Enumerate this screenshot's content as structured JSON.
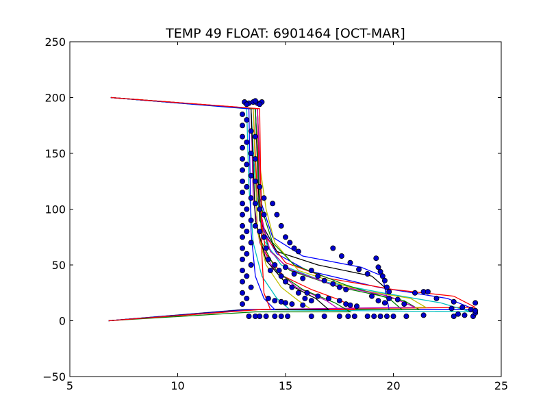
{
  "chart_data": {
    "type": "line",
    "title": "TEMP 49 FLOAT: 6901464 [OCT-MAR]",
    "xlabel": "",
    "ylabel": "",
    "xlim": [
      5,
      25
    ],
    "ylim": [
      -50,
      250
    ],
    "xticks": [
      5,
      10,
      15,
      20,
      25
    ],
    "yticks": [
      -50,
      0,
      50,
      100,
      150,
      200,
      250
    ],
    "xtick_labels": [
      "5",
      "10",
      "15",
      "20",
      "25"
    ],
    "ytick_labels": [
      "−50",
      "0",
      "50",
      "100",
      "150",
      "200",
      "250"
    ],
    "grid": false,
    "legend": "none",
    "marker_color": "#0000cc",
    "series": [
      {
        "color": "#0000ff",
        "points": [
          [
            6.8,
            0
          ],
          [
            13.3,
            10
          ],
          [
            23.8,
            10
          ],
          [
            22.5,
            20
          ],
          [
            19.3,
            30
          ],
          [
            16,
            45
          ],
          [
            14.6,
            60
          ],
          [
            14,
            80
          ],
          [
            13.7,
            110
          ],
          [
            13.5,
            150
          ],
          [
            13.4,
            190
          ],
          [
            6.9,
            200
          ]
        ]
      },
      {
        "color": "#008000",
        "points": [
          [
            6.8,
            0
          ],
          [
            13.5,
            10
          ],
          [
            21.2,
            10
          ],
          [
            20.5,
            18
          ],
          [
            17.5,
            30
          ],
          [
            15.2,
            45
          ],
          [
            14.2,
            65
          ],
          [
            13.8,
            100
          ],
          [
            13.6,
            190
          ],
          [
            6.9,
            200
          ]
        ]
      },
      {
        "color": "#ff0000",
        "points": [
          [
            6.8,
            0
          ],
          [
            13.2,
            10
          ],
          [
            23.8,
            12
          ],
          [
            22.8,
            22
          ],
          [
            20,
            28
          ],
          [
            17,
            38
          ],
          [
            15,
            52
          ],
          [
            14.1,
            75
          ],
          [
            13.7,
            110
          ],
          [
            13.5,
            190
          ],
          [
            6.9,
            200
          ]
        ]
      },
      {
        "color": "#00bfbf",
        "points": [
          [
            6.8,
            0
          ],
          [
            13.4,
            10
          ],
          [
            23.6,
            8
          ],
          [
            22.2,
            16
          ],
          [
            19.5,
            25
          ],
          [
            16.8,
            35
          ],
          [
            14.8,
            50
          ],
          [
            14,
            72
          ],
          [
            13.6,
            120
          ],
          [
            13.4,
            190
          ],
          [
            6.9,
            200
          ]
        ]
      },
      {
        "color": "#bf00bf",
        "points": [
          [
            6.8,
            0
          ],
          [
            13.3,
            10
          ],
          [
            17.5,
            10
          ],
          [
            16.9,
            18
          ],
          [
            15.5,
            30
          ],
          [
            14.4,
            48
          ],
          [
            13.8,
            70
          ],
          [
            13.5,
            110
          ],
          [
            13.4,
            190
          ],
          [
            6.9,
            200
          ]
        ]
      },
      {
        "color": "#bfbf00",
        "points": [
          [
            6.8,
            0
          ],
          [
            13.5,
            10
          ],
          [
            16.2,
            10
          ],
          [
            15.6,
            18
          ],
          [
            14.8,
            30
          ],
          [
            14.1,
            50
          ],
          [
            13.7,
            80
          ],
          [
            13.5,
            190
          ],
          [
            6.9,
            200
          ]
        ]
      },
      {
        "color": "#000000",
        "points": [
          [
            6.8,
            0
          ],
          [
            13.6,
            10
          ],
          [
            19.8,
            10
          ],
          [
            19.7,
            20
          ],
          [
            19.6,
            30
          ],
          [
            19,
            40
          ],
          [
            16.5,
            50
          ],
          [
            14.6,
            62
          ],
          [
            13.8,
            90
          ],
          [
            13.6,
            190
          ],
          [
            6.9,
            200
          ]
        ]
      },
      {
        "color": "#0000ff",
        "points": [
          [
            6.8,
            0
          ],
          [
            13.1,
            10
          ],
          [
            19.8,
            10
          ],
          [
            19.6,
            30
          ],
          [
            19.5,
            40
          ],
          [
            18.5,
            48
          ],
          [
            15.8,
            58
          ],
          [
            14.4,
            75
          ],
          [
            13.8,
            110
          ],
          [
            13.6,
            190
          ],
          [
            6.9,
            200
          ]
        ]
      },
      {
        "color": "#bfbf00",
        "points": [
          [
            6.8,
            0
          ],
          [
            13.2,
            10
          ],
          [
            21.5,
            12
          ],
          [
            20.8,
            20
          ],
          [
            18.3,
            28
          ],
          [
            15.6,
            45
          ],
          [
            14.5,
            70
          ],
          [
            14.1,
            100
          ],
          [
            13.8,
            140
          ],
          [
            13.7,
            190
          ],
          [
            6.9,
            200
          ]
        ]
      },
      {
        "color": "#008000",
        "points": [
          [
            6.8,
            0
          ],
          [
            13.4,
            10
          ],
          [
            20.4,
            10
          ],
          [
            19.8,
            20
          ],
          [
            17.8,
            32
          ],
          [
            15.4,
            50
          ],
          [
            14.4,
            70
          ],
          [
            13.9,
            100
          ],
          [
            13.7,
            190
          ],
          [
            6.9,
            200
          ]
        ]
      },
      {
        "color": "#ff0000",
        "points": [
          [
            6.8,
            0
          ],
          [
            13.7,
            10
          ],
          [
            18.2,
            10
          ],
          [
            17.6,
            18
          ],
          [
            16.2,
            28
          ],
          [
            14.9,
            40
          ],
          [
            14.1,
            60
          ],
          [
            13.8,
            100
          ],
          [
            13.7,
            190
          ],
          [
            6.9,
            200
          ]
        ]
      },
      {
        "color": "#00bfbf",
        "points": [
          [
            6.8,
            0
          ],
          [
            13.0,
            10
          ],
          [
            15.2,
            10
          ],
          [
            14.6,
            20
          ],
          [
            13.9,
            40
          ],
          [
            13.5,
            70
          ],
          [
            13.3,
            120
          ],
          [
            13.2,
            190
          ],
          [
            6.9,
            200
          ]
        ]
      },
      {
        "color": "#bf00bf",
        "points": [
          [
            6.8,
            0
          ],
          [
            13.1,
            10
          ],
          [
            21.0,
            12
          ],
          [
            19.8,
            22
          ],
          [
            17.2,
            32
          ],
          [
            15.2,
            46
          ],
          [
            14.3,
            62
          ],
          [
            13.9,
            90
          ],
          [
            13.7,
            190
          ],
          [
            6.9,
            200
          ]
        ]
      },
      {
        "color": "#000000",
        "points": [
          [
            6.8,
            0
          ],
          [
            13.2,
            10
          ],
          [
            17.0,
            10
          ],
          [
            16.4,
            20
          ],
          [
            15.0,
            34
          ],
          [
            14.1,
            54
          ],
          [
            13.6,
            90
          ],
          [
            13.4,
            190
          ],
          [
            6.9,
            200
          ]
        ]
      },
      {
        "color": "#008000",
        "points": [
          [
            6.8,
            0
          ],
          [
            13.6,
            8
          ],
          [
            18.0,
            8
          ],
          [
            17.3,
            16
          ],
          [
            15.8,
            28
          ],
          [
            14.6,
            44
          ],
          [
            13.9,
            70
          ],
          [
            13.6,
            190
          ],
          [
            6.9,
            200
          ]
        ]
      },
      {
        "color": "#0000ff",
        "points": [
          [
            6.8,
            0
          ],
          [
            13.4,
            10
          ],
          [
            14.5,
            10
          ],
          [
            14.0,
            20
          ],
          [
            13.6,
            40
          ],
          [
            13.4,
            80
          ],
          [
            13.3,
            190
          ],
          [
            6.9,
            200
          ]
        ]
      },
      {
        "color": "#ff0000",
        "points": [
          [
            6.8,
            0
          ],
          [
            13.8,
            10
          ],
          [
            14.3,
            10
          ],
          [
            14.0,
            25
          ],
          [
            13.9,
            60
          ],
          [
            13.8,
            190
          ],
          [
            6.9,
            200
          ]
        ]
      }
    ],
    "scatter": [
      [
        13.3,
        195
      ],
      [
        13.5,
        196
      ],
      [
        13.7,
        195
      ],
      [
        13.1,
        196
      ],
      [
        13.9,
        196
      ],
      [
        13.6,
        197
      ],
      [
        13.2,
        194
      ],
      [
        13.8,
        194
      ],
      [
        13.0,
        185
      ],
      [
        13.0,
        175
      ],
      [
        13.0,
        165
      ],
      [
        13.0,
        155
      ],
      [
        13.0,
        145
      ],
      [
        13.0,
        135
      ],
      [
        13.0,
        125
      ],
      [
        13.0,
        115
      ],
      [
        13.0,
        105
      ],
      [
        13.0,
        95
      ],
      [
        13.0,
        85
      ],
      [
        13.0,
        75
      ],
      [
        13.0,
        65
      ],
      [
        13.0,
        55
      ],
      [
        13.0,
        45
      ],
      [
        13.0,
        35
      ],
      [
        13.0,
        25
      ],
      [
        13.0,
        15
      ],
      [
        13.2,
        180
      ],
      [
        13.2,
        160
      ],
      [
        13.2,
        140
      ],
      [
        13.2,
        120
      ],
      [
        13.2,
        100
      ],
      [
        13.2,
        80
      ],
      [
        13.2,
        60
      ],
      [
        13.2,
        40
      ],
      [
        13.2,
        20
      ],
      [
        13.4,
        170
      ],
      [
        13.4,
        150
      ],
      [
        13.4,
        130
      ],
      [
        13.4,
        110
      ],
      [
        13.4,
        90
      ],
      [
        13.4,
        70
      ],
      [
        13.4,
        50
      ],
      [
        13.4,
        30
      ],
      [
        13.6,
        165
      ],
      [
        13.6,
        145
      ],
      [
        13.6,
        125
      ],
      [
        13.6,
        105
      ],
      [
        13.6,
        85
      ],
      [
        13.8,
        120
      ],
      [
        13.8,
        100
      ],
      [
        13.8,
        80
      ],
      [
        14.0,
        110
      ],
      [
        14.0,
        95
      ],
      [
        14.0,
        75
      ],
      [
        14.1,
        65
      ],
      [
        14.2,
        55
      ],
      [
        14.3,
        45
      ],
      [
        14.4,
        105
      ],
      [
        14.6,
        95
      ],
      [
        14.8,
        85
      ],
      [
        15.0,
        75
      ],
      [
        15.2,
        70
      ],
      [
        15.4,
        65
      ],
      [
        15.6,
        62
      ],
      [
        14.8,
        40
      ],
      [
        15.0,
        35
      ],
      [
        15.3,
        30
      ],
      [
        15.6,
        25
      ],
      [
        15.9,
        20
      ],
      [
        16.2,
        18
      ],
      [
        14.5,
        50
      ],
      [
        14.7,
        45
      ],
      [
        15.0,
        48
      ],
      [
        15.4,
        42
      ],
      [
        15.8,
        38
      ],
      [
        16.2,
        45
      ],
      [
        16.5,
        40
      ],
      [
        16.8,
        36
      ],
      [
        17.2,
        33
      ],
      [
        17.5,
        30
      ],
      [
        17.8,
        28
      ],
      [
        17.2,
        65
      ],
      [
        17.6,
        58
      ],
      [
        18.0,
        52
      ],
      [
        18.4,
        46
      ],
      [
        18.8,
        42
      ],
      [
        19.2,
        56
      ],
      [
        19.3,
        48
      ],
      [
        19.4,
        44
      ],
      [
        19.5,
        40
      ],
      [
        19.6,
        36
      ],
      [
        19.7,
        30
      ],
      [
        19.8,
        26
      ],
      [
        19.0,
        22
      ],
      [
        19.3,
        18
      ],
      [
        19.6,
        16
      ],
      [
        19.8,
        20
      ],
      [
        20.2,
        19
      ],
      [
        20.5,
        15
      ],
      [
        21.0,
        25
      ],
      [
        21.4,
        26
      ],
      [
        21.6,
        26
      ],
      [
        22.0,
        20
      ],
      [
        22.8,
        17
      ],
      [
        23.2,
        12
      ],
      [
        23.6,
        10
      ],
      [
        16.0,
        25
      ],
      [
        16.5,
        22
      ],
      [
        17.0,
        20
      ],
      [
        17.5,
        18
      ],
      [
        17.8,
        15
      ],
      [
        18.0,
        14
      ],
      [
        18.3,
        13
      ],
      [
        14.2,
        20
      ],
      [
        14.5,
        18
      ],
      [
        14.8,
        17
      ],
      [
        15.0,
        16
      ],
      [
        15.3,
        15
      ],
      [
        15.8,
        14
      ],
      [
        16.2,
        4
      ],
      [
        16.8,
        4
      ],
      [
        17.5,
        4
      ],
      [
        17.9,
        4
      ],
      [
        18.2,
        4
      ],
      [
        18.8,
        4
      ],
      [
        19.1,
        4
      ],
      [
        19.4,
        4
      ],
      [
        19.7,
        4
      ],
      [
        20.0,
        4
      ],
      [
        20.6,
        4
      ],
      [
        22.8,
        4
      ],
      [
        23.0,
        6
      ],
      [
        23.3,
        5
      ],
      [
        23.7,
        4
      ],
      [
        23.8,
        7
      ],
      [
        23.8,
        9
      ],
      [
        23.8,
        16
      ],
      [
        22.7,
        11
      ],
      [
        21.4,
        5
      ],
      [
        13.3,
        4
      ],
      [
        13.6,
        4
      ],
      [
        13.8,
        4
      ],
      [
        14.1,
        4
      ],
      [
        14.5,
        4
      ],
      [
        14.8,
        4
      ],
      [
        15.1,
        4
      ]
    ]
  }
}
